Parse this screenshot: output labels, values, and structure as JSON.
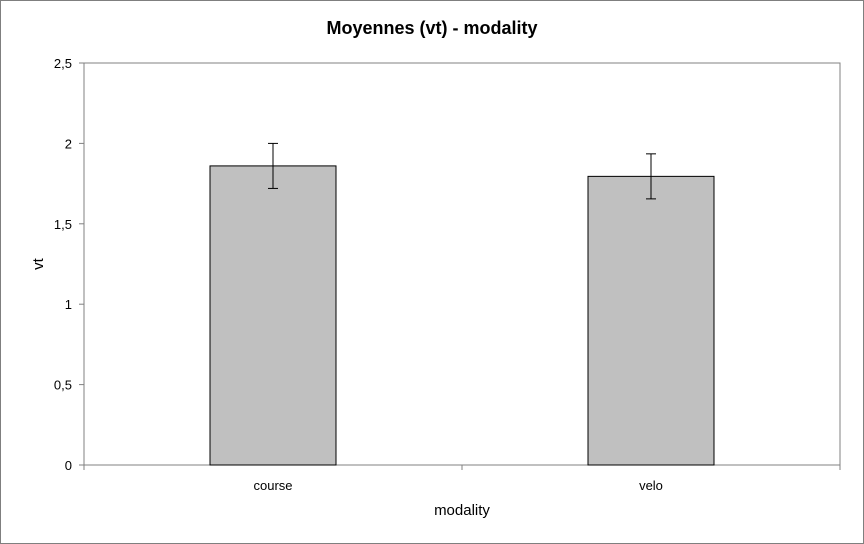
{
  "chart_data": {
    "type": "bar",
    "title": "Moyennes (vt) - modality",
    "xlabel": "modality",
    "ylabel": "vt",
    "categories": [
      "course",
      "velo"
    ],
    "values": [
      1.86,
      1.795
    ],
    "error_low": [
      1.72,
      1.655
    ],
    "error_high": [
      2.0,
      1.935
    ],
    "ylim": [
      0,
      2.5
    ],
    "yticks": [
      0,
      0.5,
      1,
      1.5,
      2,
      2.5
    ],
    "ytick_labels": [
      "0",
      "0,5",
      "1",
      "1,5",
      "2",
      "2,5"
    ],
    "grid": false,
    "legend": "none",
    "bar_color": "#c0c0c0",
    "bar_edge_color": "#000000"
  }
}
